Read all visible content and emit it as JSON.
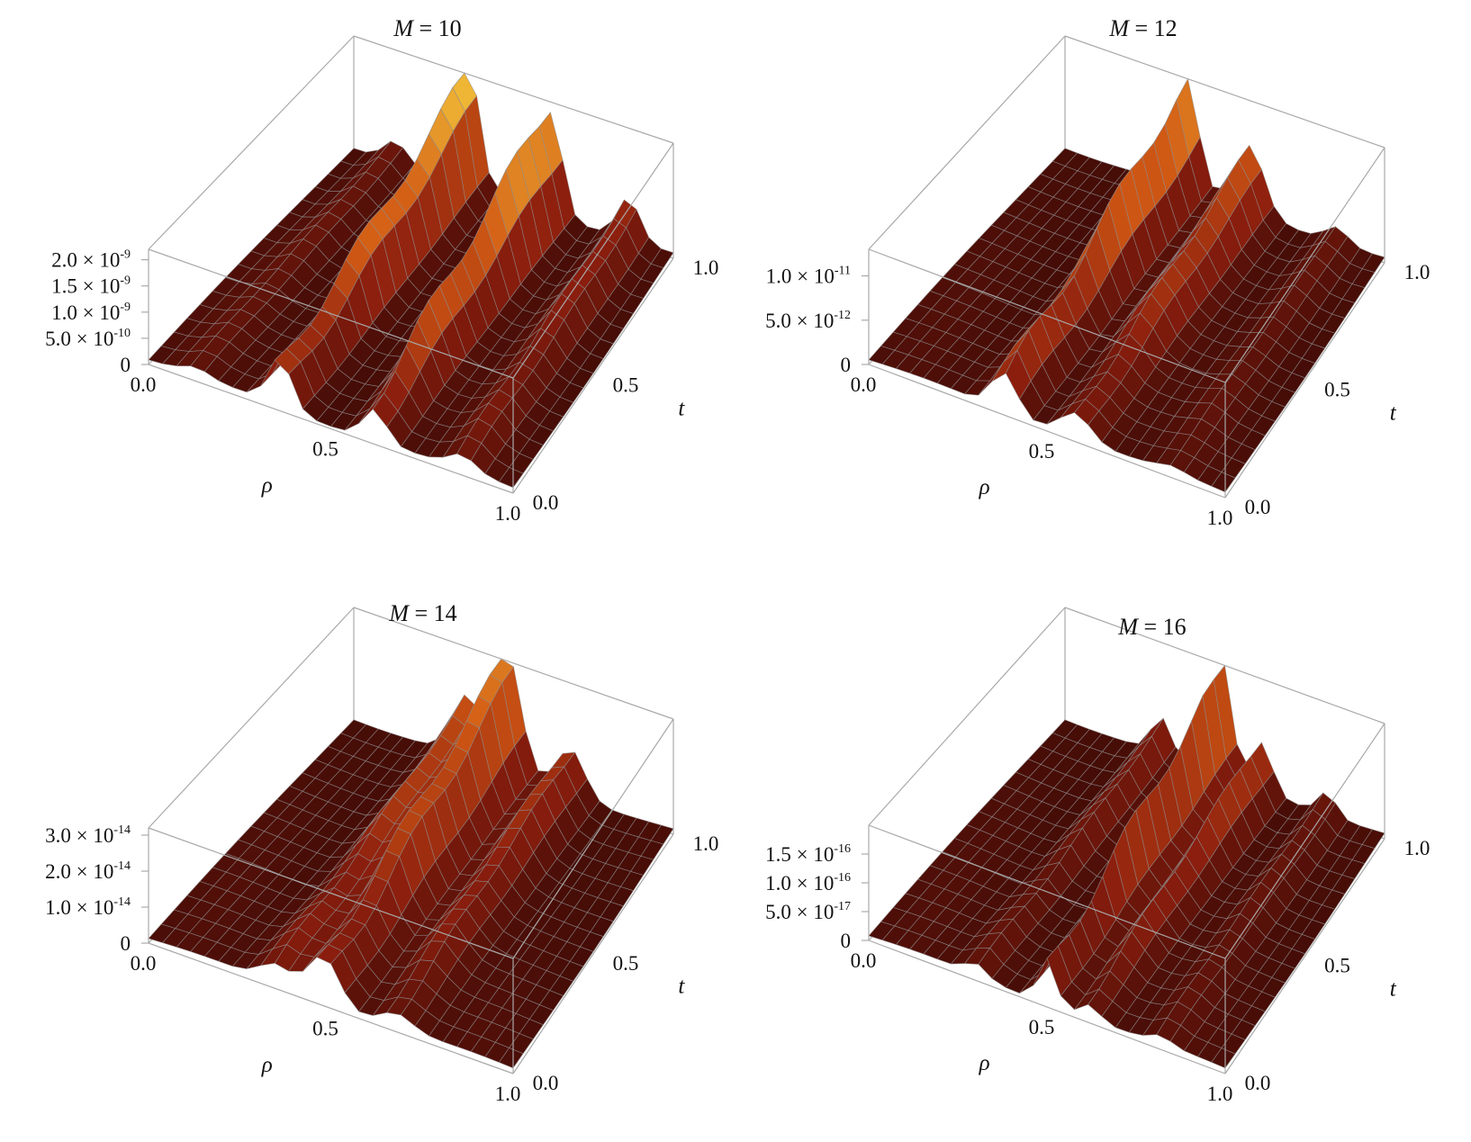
{
  "chart_data": [
    {
      "type": "surface",
      "title_var": "M",
      "title_rest": " = 10",
      "xlabel": "ρ",
      "ylabel": "t",
      "xlim": [
        0,
        1
      ],
      "ylim": [
        0,
        1
      ],
      "zlim": [
        0,
        2.2e-09
      ],
      "x_ticks": [
        "0.0",
        "0.5",
        "1.0"
      ],
      "y_ticks": [
        "0.0",
        "0.5",
        "1.0"
      ],
      "z_ticks": [
        {
          "value": 0,
          "mant": "0",
          "exp": ""
        },
        {
          "value": 5e-10,
          "mant": "5.0 × 10",
          "exp": "-10"
        },
        {
          "value": 1e-09,
          "mant": "1.0 × 10",
          "exp": "-9"
        },
        {
          "value": 1.5e-09,
          "mant": "1.5 × 10",
          "exp": "-9"
        },
        {
          "value": 2e-09,
          "mant": "2.0 × 10",
          "exp": "-9"
        }
      ],
      "ridges": [
        {
          "rho": 0.13,
          "width": 0.05,
          "peak": 4e-10
        },
        {
          "rho": 0.36,
          "width": 0.045,
          "peak": 2.2e-09
        },
        {
          "rho": 0.62,
          "width": 0.045,
          "peak": 2.1e-09
        },
        {
          "rho": 0.86,
          "width": 0.05,
          "peak": 8e-10
        }
      ],
      "colormap": "darkred-to-yellow"
    },
    {
      "type": "surface",
      "title_var": "M",
      "title_rest": " = 12",
      "xlabel": "ρ",
      "ylabel": "t",
      "xlim": [
        0,
        1
      ],
      "ylim": [
        0,
        1
      ],
      "zlim": [
        0,
        1.3e-11
      ],
      "x_ticks": [
        "0.0",
        "0.5",
        "1.0"
      ],
      "y_ticks": [
        "0.0",
        "0.5",
        "1.0"
      ],
      "z_ticks": [
        {
          "value": 0,
          "mant": "0",
          "exp": ""
        },
        {
          "value": 5e-12,
          "mant": "5.0 × 10",
          "exp": "-12"
        },
        {
          "value": 1e-11,
          "mant": "1.0 × 10",
          "exp": "-11"
        }
      ],
      "ridges": [
        {
          "rho": 0.38,
          "width": 0.05,
          "peak": 1.25e-11
        },
        {
          "rho": 0.58,
          "width": 0.06,
          "peak": 7e-12
        },
        {
          "rho": 0.85,
          "width": 0.05,
          "peak": 2e-12
        }
      ],
      "colormap": "darkred-to-yellow"
    },
    {
      "type": "surface",
      "title_var": "M",
      "title_rest": " = 14",
      "xlabel": "ρ",
      "ylabel": "t",
      "xlim": [
        0,
        1
      ],
      "ylim": [
        0,
        1
      ],
      "zlim": [
        0,
        3.2e-14
      ],
      "x_ticks": [
        "0.0",
        "0.5",
        "1.0"
      ],
      "y_ticks": [
        "0.0",
        "0.5",
        "1.0"
      ],
      "z_ticks": [
        {
          "value": 0,
          "mant": "0",
          "exp": ""
        },
        {
          "value": 1e-14,
          "mant": "1.0 × 10",
          "exp": "-14"
        },
        {
          "value": 2e-14,
          "mant": "2.0 × 10",
          "exp": "-14"
        },
        {
          "value": 3e-14,
          "mant": "3.0 × 10",
          "exp": "-14"
        }
      ],
      "ridges": [
        {
          "rho": 0.35,
          "width": 0.06,
          "peak": 1.6e-14
        },
        {
          "rho": 0.48,
          "width": 0.06,
          "peak": 3.1e-14
        },
        {
          "rho": 0.68,
          "width": 0.06,
          "peak": 1.4e-14
        }
      ],
      "colormap": "darkred-to-yellow"
    },
    {
      "type": "surface",
      "title_var": "M",
      "title_rest": " = 16",
      "xlabel": "ρ",
      "ylabel": "t",
      "xlim": [
        0,
        1
      ],
      "ylim": [
        0,
        1
      ],
      "zlim": [
        0,
        2e-16
      ],
      "x_ticks": [
        "0.0",
        "0.5",
        "1.0"
      ],
      "y_ticks": [
        "0.0",
        "0.5",
        "1.0"
      ],
      "z_ticks": [
        {
          "value": 0,
          "mant": "0",
          "exp": ""
        },
        {
          "value": 5e-17,
          "mant": "5.0 × 10",
          "exp": "-17"
        },
        {
          "value": 1e-16,
          "mant": "1.0 × 10",
          "exp": "-16"
        },
        {
          "value": 1.5e-16,
          "mant": "1.5 × 10",
          "exp": "-16"
        }
      ],
      "ridges": [
        {
          "rho": 0.3,
          "width": 0.04,
          "peak": 6e-17
        },
        {
          "rho": 0.5,
          "width": 0.035,
          "peak": 1.9e-16
        },
        {
          "rho": 0.62,
          "width": 0.04,
          "peak": 9e-17
        },
        {
          "rho": 0.82,
          "width": 0.04,
          "peak": 4e-17
        }
      ],
      "colormap": "darkred-to-yellow"
    }
  ]
}
